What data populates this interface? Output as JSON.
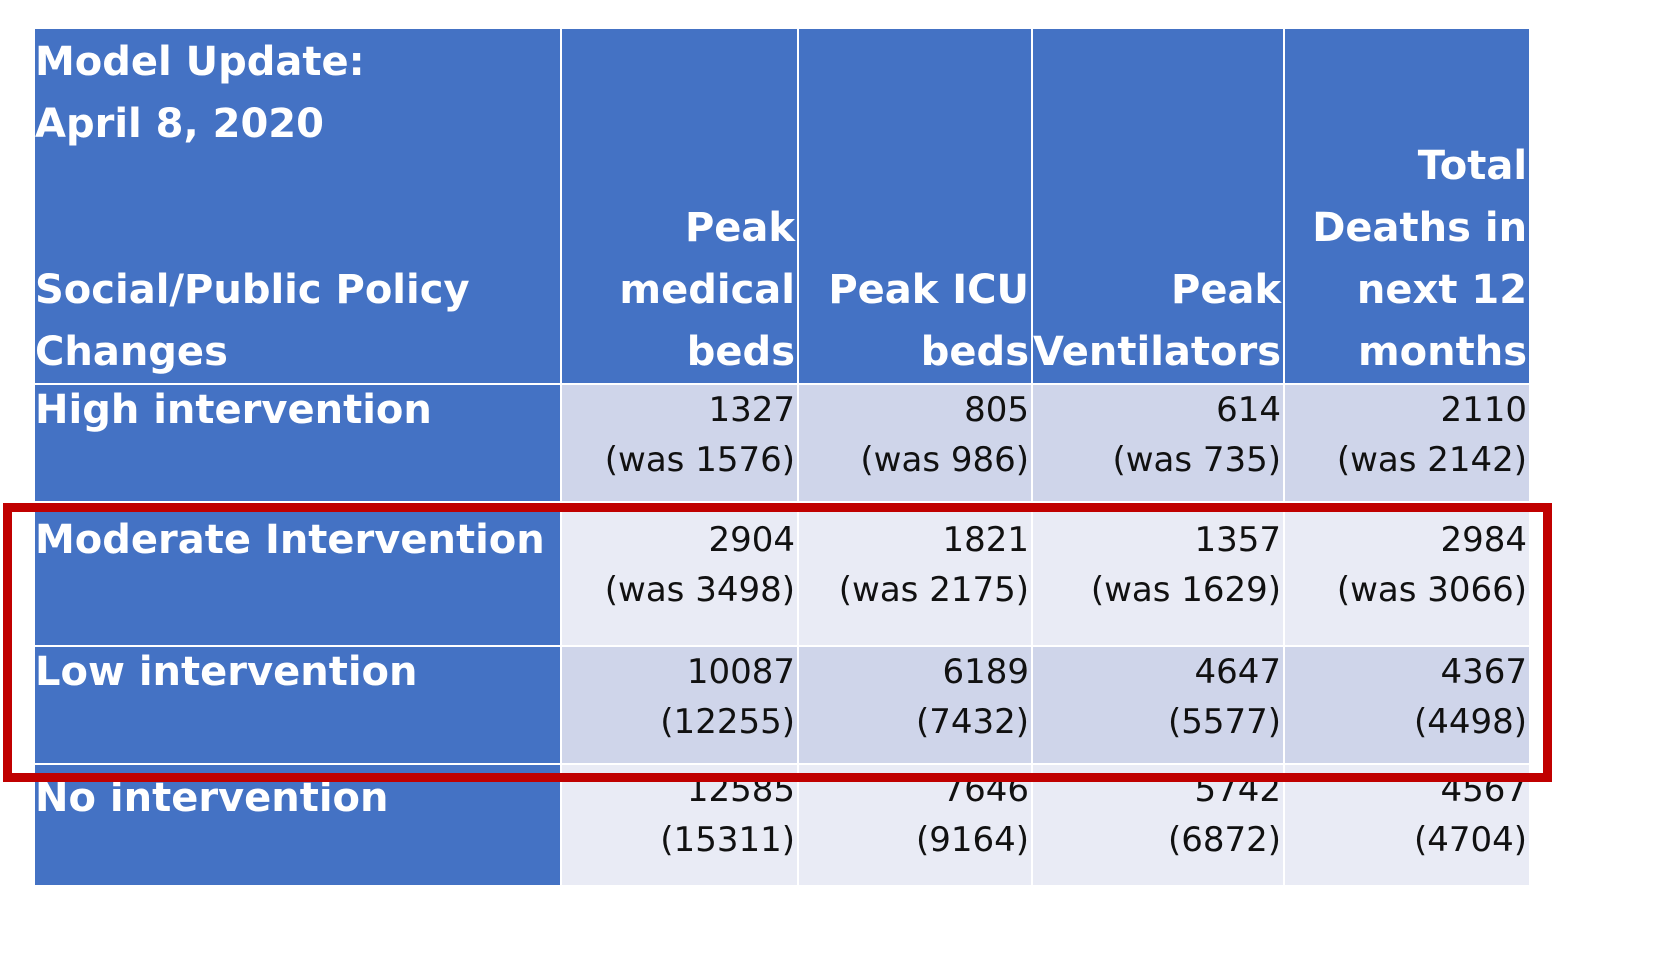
{
  "table": {
    "header": {
      "corner_line1": "Model Update:",
      "corner_line2": "April 8, 2020",
      "corner_line3": "Social/Public Policy",
      "corner_line4": "Changes",
      "columns": [
        [
          "Peak",
          "medical",
          "beds"
        ],
        [
          "Peak ICU",
          "beds"
        ],
        [
          "Peak",
          "Ventilators"
        ],
        [
          "Total",
          "Deaths in",
          "next 12",
          "months"
        ]
      ]
    },
    "rows": [
      {
        "label": "High intervention",
        "cells": [
          [
            "1327",
            "(was 1576)"
          ],
          [
            "805",
            "(was 986)"
          ],
          [
            "614",
            "(was 735)"
          ],
          [
            "2110",
            "(was 2142)"
          ]
        ]
      },
      {
        "label": "Moderate Intervention",
        "cells": [
          [
            "2904",
            "(was 3498)"
          ],
          [
            "1821",
            "(was 2175)"
          ],
          [
            "1357",
            "(was 1629)"
          ],
          [
            "2984",
            "(was 3066)"
          ]
        ]
      },
      {
        "label": "Low intervention",
        "cells": [
          [
            "10087",
            "(12255)"
          ],
          [
            "6189",
            "(7432)"
          ],
          [
            "4647",
            "(5577)"
          ],
          [
            "4367",
            "(4498)"
          ]
        ]
      },
      {
        "label": "No intervention",
        "cells": [
          [
            "12585",
            "(15311)"
          ],
          [
            "7646",
            "(9164)"
          ],
          [
            "5742",
            "(6872)"
          ],
          [
            "4567",
            "(4704)"
          ]
        ]
      }
    ]
  },
  "highlight": {
    "color": "#c00000",
    "rows": [
      "Moderate Intervention",
      "Low intervention"
    ]
  },
  "colors": {
    "header_bg": "#4472c4",
    "cell_dark": "#cfd5ea",
    "cell_light": "#e9ebf5"
  }
}
